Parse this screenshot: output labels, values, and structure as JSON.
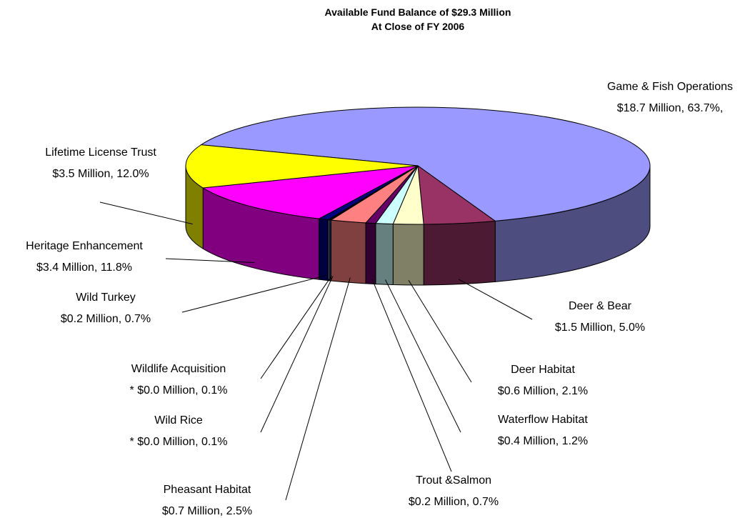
{
  "chart_data": {
    "type": "pie",
    "title": "Available Fund Balance of  $29.3 Million",
    "subtitle": "At Close of FY 2006",
    "categories": [
      "Game & Fish Operations",
      "Deer & Bear",
      "Deer Habitat",
      "Waterflow Habitat",
      "Trout &Salmon",
      "Pheasant Habitat",
      "Wild Rice",
      "Wildlife Acquisition",
      "Wild Turkey",
      "Heritage Enhancement",
      "Lifetime License Trust"
    ],
    "values": [
      63.7,
      5.0,
      2.1,
      1.2,
      0.7,
      2.5,
      0.1,
      0.1,
      0.7,
      11.8,
      12.0
    ],
    "value_labels": [
      "$18.7 Million,  63.7%,",
      "$1.5 Million, 5.0%",
      "$0.6 Million,  2.1%",
      "$0.4 Million,  1.2%",
      "$0.2 Million,  0.7%",
      "$0.7 Million,  2.5%",
      "* $0.0 Million,  0.1%",
      "* $0.0 Million,  0.1%",
      "$0.2 Million,  0.7%",
      "$3.4 Million, 11.8%",
      "$3.5 Million, 12.0%"
    ],
    "colors": [
      "#9999ff",
      "#993366",
      "#ffffcc",
      "#ccffff",
      "#660066",
      "#ff8080",
      "#0066cc",
      "#ccccff",
      "#000080",
      "#ff00ff",
      "#ffff00"
    ]
  }
}
